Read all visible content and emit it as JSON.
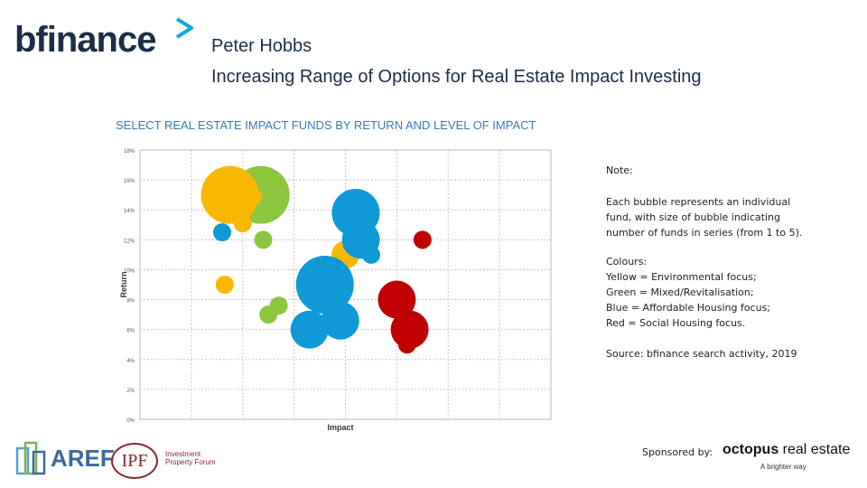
{
  "header": {
    "brand": "bfinance",
    "speaker": "Peter Hobbs",
    "title": "Increasing Range of Options for Real Estate Impact Investing"
  },
  "chart_title": "SELECT REAL ESTATE IMPACT FUNDS BY RETURN AND LEVEL OF IMPACT",
  "notes": {
    "heading": "Note:",
    "description_lines": [
      "Each bubble represents an individual",
      "fund, with size of bubble indicating",
      "number of funds in series (from 1 to 5)."
    ],
    "colours_heading": "Colours:",
    "colours_lines": [
      "Yellow = Environmental focus;",
      "Green = Mixed/Revitalisation;",
      "Blue = Affordable Housing focus;",
      "Red = Social Housing focus."
    ],
    "source": "Source: bfinance search activity, 2019"
  },
  "footer": {
    "aref": "AREF",
    "ipf": "IPF",
    "ipf_sub": "Investment Property Forum",
    "sponsored_by": "Sponsored by:",
    "octopus_bold": "octopus",
    "octopus_rest": " real estate",
    "octopus_tagline": "A brighter way"
  },
  "colors": {
    "environmental": "#f9b800",
    "mixed": "#8cc63f",
    "affordable": "#0f9ad7",
    "social": "#c00000",
    "title_blue": "#3b78b5",
    "brand_navy": "#1c2e45"
  },
  "chart_data": {
    "type": "scatter",
    "title": "SELECT REAL ESTATE IMPACT FUNDS BY RETURN AND LEVEL OF IMPACT",
    "xlabel": "Impact",
    "ylabel": "Return",
    "xlim": [
      0,
      8
    ],
    "ylim": [
      0,
      18
    ],
    "x_ticks": 8,
    "y_ticks": [
      "0%",
      "2%",
      "4%",
      "6%",
      "8%",
      "10%",
      "12%",
      "14%",
      "16%",
      "18%"
    ],
    "grid": true,
    "series": [
      {
        "color": "#8cc63f",
        "points": [
          {
            "x": 2.35,
            "y": 15.0,
            "size": 5
          },
          {
            "x": 2.4,
            "y": 12.0,
            "size": 1
          },
          {
            "x": 2.7,
            "y": 7.6,
            "size": 1
          },
          {
            "x": 2.5,
            "y": 7.0,
            "size": 1
          }
        ]
      },
      {
        "color": "#f9b800",
        "points": [
          {
            "x": 1.75,
            "y": 15.0,
            "size": 5
          },
          {
            "x": 2.2,
            "y": 14.9,
            "size": 1
          },
          {
            "x": 2.0,
            "y": 13.1,
            "size": 1
          },
          {
            "x": 1.65,
            "y": 9.0,
            "size": 1
          },
          {
            "x": 4.0,
            "y": 11.0,
            "size": 2
          }
        ]
      },
      {
        "color": "#0f9ad7",
        "points": [
          {
            "x": 1.6,
            "y": 12.5,
            "size": 1
          },
          {
            "x": 4.2,
            "y": 13.8,
            "size": 4
          },
          {
            "x": 4.3,
            "y": 12.0,
            "size": 3
          },
          {
            "x": 4.5,
            "y": 11.0,
            "size": 1
          },
          {
            "x": 3.6,
            "y": 9.0,
            "size": 5
          },
          {
            "x": 3.9,
            "y": 6.6,
            "size": 3
          },
          {
            "x": 3.3,
            "y": 6.0,
            "size": 3
          }
        ]
      },
      {
        "color": "#c00000",
        "points": [
          {
            "x": 5.5,
            "y": 12.0,
            "size": 1
          },
          {
            "x": 5.0,
            "y": 8.0,
            "size": 3
          },
          {
            "x": 5.25,
            "y": 6.0,
            "size": 3
          },
          {
            "x": 5.2,
            "y": 5.0,
            "size": 1
          }
        ]
      }
    ]
  }
}
